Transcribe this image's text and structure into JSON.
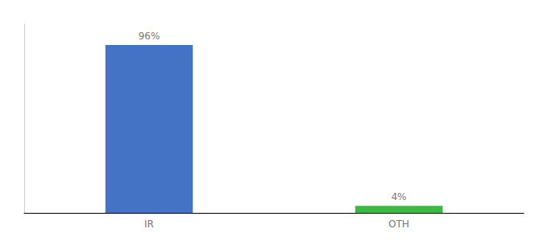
{
  "chart_data": {
    "type": "bar",
    "categories": [
      "IR",
      "OTH"
    ],
    "values": [
      96,
      4
    ],
    "value_labels": [
      "96%",
      "4%"
    ],
    "colors": [
      "#4472C4",
      "#3CB843"
    ],
    "ylim": [
      0,
      108
    ],
    "tick_labels": "x",
    "grid": false,
    "data_labels": true
  }
}
